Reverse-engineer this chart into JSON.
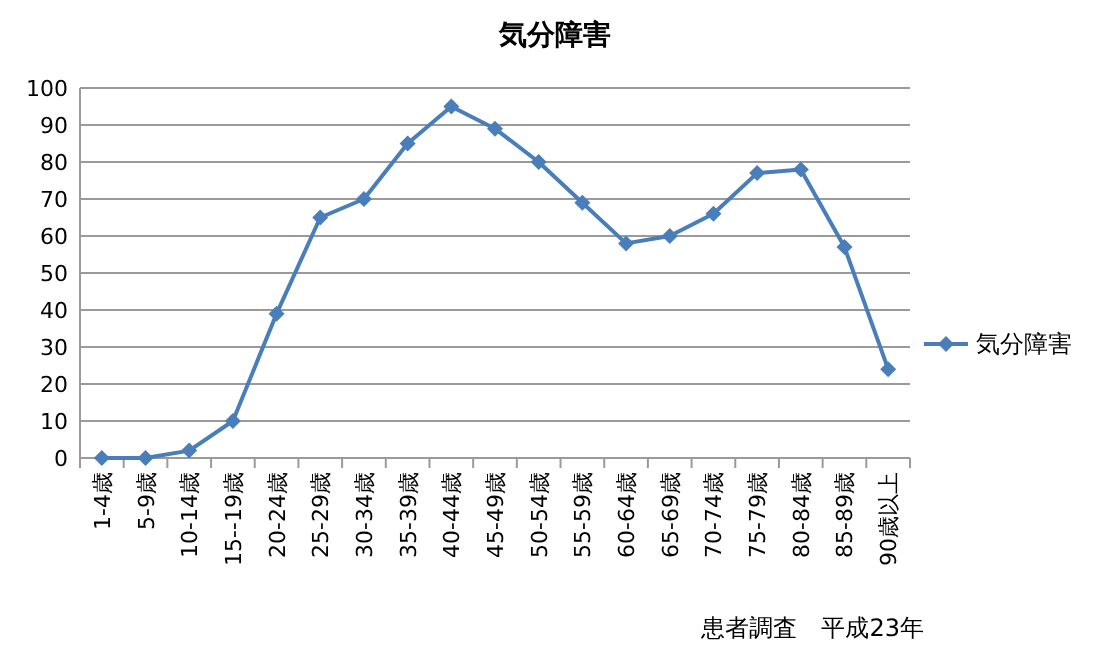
{
  "chart_data": {
    "type": "line",
    "title": "気分障害",
    "categories": [
      "1-4歳",
      "5-9歳",
      "10-14歳",
      "15--19歳",
      "20-24歳",
      "25-29歳",
      "30-34歳",
      "35-39歳",
      "40-44歳",
      "45-49歳",
      "50-54歳",
      "55-59歳",
      "60-64歳",
      "65-69歳",
      "70-74歳",
      "75-79歳",
      "80-84歳",
      "85-89歳",
      "90歳以上"
    ],
    "series": [
      {
        "name": "気分障害",
        "color": "#4a7ebb",
        "values": [
          0,
          0,
          2,
          10,
          39,
          65,
          70,
          85,
          95,
          89,
          80,
          69,
          58,
          60,
          66,
          77,
          78,
          57,
          24
        ]
      }
    ],
    "ylim": [
      0,
      100
    ],
    "yticks": [
      0,
      10,
      20,
      30,
      40,
      50,
      60,
      70,
      80,
      90,
      100
    ],
    "grid": "y",
    "legend": "right",
    "marker": "diamond",
    "line_style": "solid",
    "annotations": [
      "患者調査　平成23年"
    ]
  }
}
